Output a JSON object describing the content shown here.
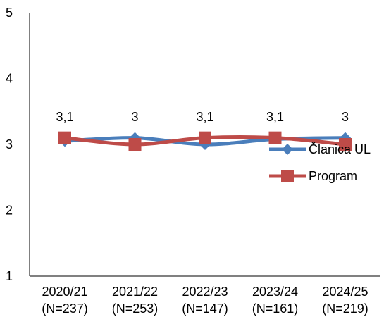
{
  "chart_data": {
    "type": "line",
    "categories": [
      [
        "2020/21",
        "(N=237)"
      ],
      [
        "2021/22",
        "(N=253)"
      ],
      [
        "2022/23",
        "(N=147)"
      ],
      [
        "2023/24",
        "(N=161)"
      ],
      [
        "2024/25",
        "(N=219)"
      ]
    ],
    "ylim": [
      1,
      5
    ],
    "yticks": [
      1,
      2,
      3,
      4,
      5
    ],
    "grid": false,
    "legend_position": "right",
    "series": [
      {
        "name": "Članica UL",
        "values": [
          3.05,
          3.1,
          3.0,
          3.08,
          3.1
        ],
        "color": "#4A7EBB",
        "marker": "diamond"
      },
      {
        "name": "Program",
        "values": [
          3.1,
          3.0,
          3.1,
          3.1,
          3.0
        ],
        "color": "#BE4B48",
        "marker": "square"
      }
    ],
    "data_labels": [
      "3,1",
      "3",
      "3,1",
      "3,1",
      "3"
    ]
  }
}
